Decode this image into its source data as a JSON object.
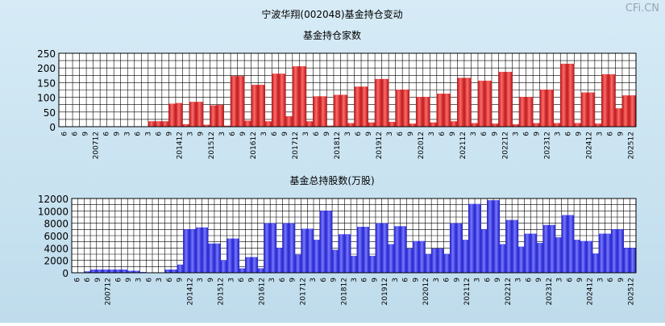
{
  "title": "宁波华翔(002048)基金持仓变动",
  "watermark": "CFi.CN",
  "colors": {
    "red": "#e02a2a",
    "blue": "#3a3af0",
    "grid": "#000000",
    "plot_bg": "#ffffff"
  },
  "x_labels": [
    "6",
    "6",
    "9",
    "200712",
    "6",
    "9",
    "3",
    "6",
    "3",
    "6",
    "9",
    "201412",
    "3",
    "9",
    "201512",
    "3",
    "6",
    "9",
    "201612",
    "3",
    "6",
    "9",
    "201712",
    "3",
    "6",
    "9",
    "201812",
    "3",
    "6",
    "9",
    "201912",
    "3",
    "6",
    "9",
    "202012",
    "3",
    "6",
    "9",
    "202112",
    "3",
    "6",
    "9",
    "202212",
    "3",
    "6",
    "9",
    "202312",
    "3",
    "6",
    "9",
    "202412",
    "3",
    "6",
    "9",
    "202512"
  ],
  "chart_data": [
    {
      "type": "bar",
      "title": "基金持仓家数",
      "ylim": [
        0,
        250
      ],
      "yticks": [
        0,
        50,
        100,
        150,
        200,
        250
      ],
      "grid": true,
      "series": [
        {
          "values": [
            0,
            0,
            0,
            0,
            0,
            0,
            0,
            0,
            0,
            0,
            0,
            1,
            0,
            18,
            18,
            18,
            78,
            80,
            8,
            84,
            84,
            6,
            72,
            74,
            3,
            172,
            172,
            20,
            142,
            142,
            18,
            180,
            180,
            35,
            205,
            205,
            18,
            103,
            103,
            3,
            108,
            108,
            12,
            136,
            136,
            14,
            162,
            162,
            16,
            126,
            126,
            10,
            101,
            101,
            14,
            112,
            112,
            18,
            166,
            166,
            12,
            156,
            156,
            10,
            186,
            186,
            8,
            101,
            101,
            12,
            126,
            126,
            12,
            214,
            214,
            12,
            116,
            116,
            10,
            178,
            178,
            62,
            106,
            106
          ]
        }
      ]
    },
    {
      "type": "bar",
      "title": "基金总持股数(万股)",
      "ylim": [
        0,
        12000
      ],
      "yticks": [
        0,
        2000,
        4000,
        6000,
        8000,
        10000,
        12000
      ],
      "grid": true,
      "series": [
        {
          "values": [
            0,
            0,
            200,
            500,
            500,
            500,
            500,
            500,
            500,
            300,
            300,
            100,
            0,
            0,
            0,
            500,
            500,
            1300,
            7000,
            7000,
            7300,
            7300,
            4700,
            4700,
            2000,
            5500,
            5500,
            700,
            2500,
            2500,
            700,
            8000,
            8000,
            4000,
            8000,
            8000,
            2900,
            7100,
            7100,
            5300,
            10000,
            10000,
            3700,
            6200,
            6200,
            2700,
            7400,
            7400,
            2700,
            8000,
            8000,
            4600,
            7500,
            7500,
            3900,
            5100,
            5100,
            3000,
            3900,
            3900,
            3000,
            8000,
            8000,
            5300,
            11100,
            11100,
            7000,
            11700,
            11700,
            4600,
            8500,
            8500,
            4200,
            6300,
            6300,
            4800,
            7700,
            7700,
            5700,
            9300,
            9300,
            5300,
            5100,
            5100,
            3100,
            6300,
            6300,
            7000,
            7000,
            4000,
            4000
          ]
        }
      ]
    }
  ]
}
